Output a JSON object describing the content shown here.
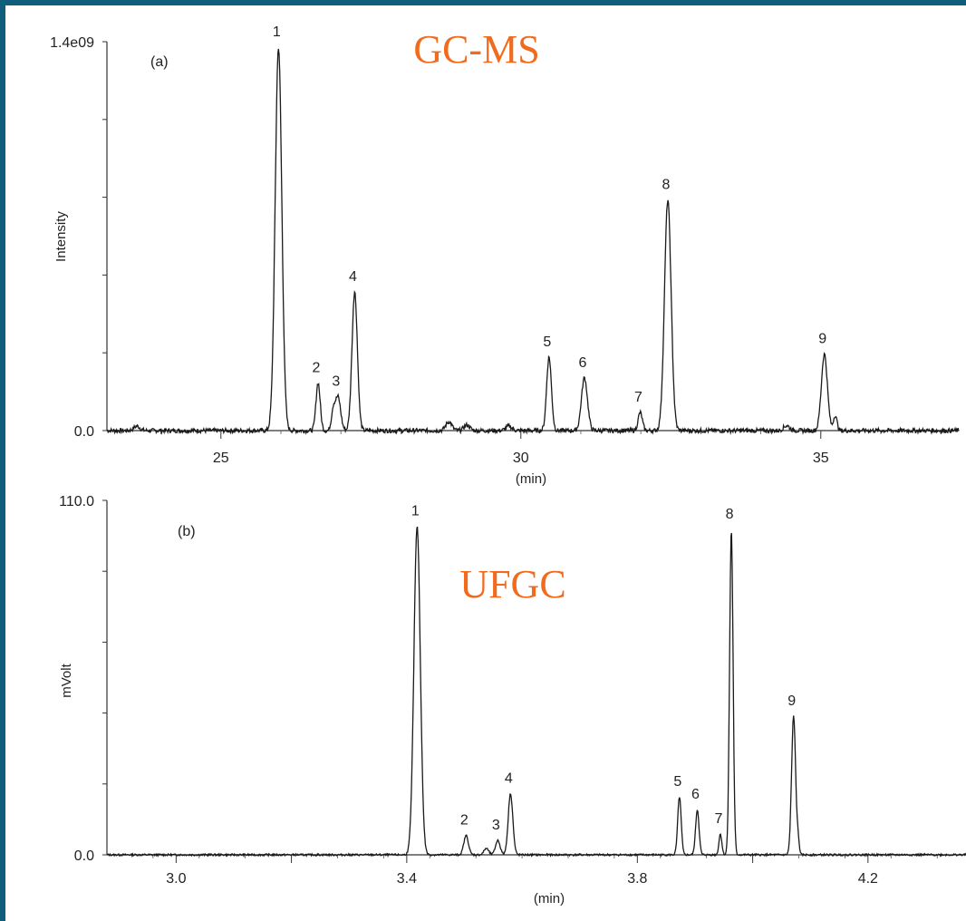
{
  "colors": {
    "frame": "#0f5f7c",
    "trace": "#1a1a1a",
    "title": "#f26a1b"
  },
  "chart_data": [
    {
      "type": "line",
      "panel": "(a)",
      "title": "GC-MS",
      "xlabel": "(min)",
      "ylabel": "Intensity",
      "xlim": [
        23.1,
        37.3
      ],
      "ylim": [
        0,
        1400000000.0
      ],
      "x_ticks": [
        25,
        30,
        35
      ],
      "x_tick_labels": [
        "25",
        "30",
        "35"
      ],
      "y_tick_labels": [
        "0.0",
        "1.4e09"
      ],
      "y_tick_count": 6,
      "baseline_noise": 8000000,
      "series": [
        {
          "peaks": [
            {
              "label": "1",
              "x": 25.96,
              "y": 1380000000.0,
              "w": 0.055
            },
            {
              "label": "2",
              "x": 26.62,
              "y": 172000000.0,
              "w": 0.035
            },
            {
              "label": "3",
              "x": 26.95,
              "y": 122000000.0,
              "w": 0.045
            },
            {
              "label": "",
              "x": 26.87,
              "y": 65000000.0,
              "w": 0.03
            },
            {
              "label": "4",
              "x": 27.23,
              "y": 500000000.0,
              "w": 0.045
            },
            {
              "label": "5",
              "x": 30.47,
              "y": 265000000.0,
              "w": 0.04
            },
            {
              "label": "6",
              "x": 31.06,
              "y": 190000000.0,
              "w": 0.05
            },
            {
              "label": "7",
              "x": 31.99,
              "y": 65000000.0,
              "w": 0.035
            },
            {
              "label": "8",
              "x": 32.45,
              "y": 830000000.0,
              "w": 0.055
            },
            {
              "label": "9",
              "x": 35.06,
              "y": 275000000.0,
              "w": 0.05
            },
            {
              "label": "",
              "x": 35.24,
              "y": 55000000.0,
              "w": 0.03
            },
            {
              "label": "",
              "x": 23.6,
              "y": 16000000.0,
              "w": 0.05
            },
            {
              "label": "",
              "x": 28.8,
              "y": 32000000.0,
              "w": 0.05
            },
            {
              "label": "",
              "x": 29.1,
              "y": 20000000.0,
              "w": 0.05
            },
            {
              "label": "",
              "x": 29.8,
              "y": 16000000.0,
              "w": 0.05
            },
            {
              "label": "",
              "x": 34.43,
              "y": 18000000.0,
              "w": 0.05
            }
          ]
        }
      ]
    },
    {
      "type": "line",
      "panel": "(b)",
      "title": "UFGC",
      "xlabel": "(min)",
      "ylabel": "mVolt",
      "xlim": [
        2.88,
        4.37
      ],
      "ylim": [
        0,
        110
      ],
      "x_ticks": [
        3.0,
        3.4,
        3.8,
        4.2
      ],
      "x_tick_labels": [
        "3.0",
        "3.4",
        "3.8",
        "4.2"
      ],
      "minor_x_ticks": [
        3.2,
        4.0
      ],
      "y_tick_labels": [
        "0.0",
        "110.0"
      ],
      "y_tick_count": 6,
      "baseline_noise": 0.3,
      "series": [
        {
          "peaks": [
            {
              "label": "1",
              "x": 3.418,
              "y": 102,
              "w": 0.0055
            },
            {
              "label": "2",
              "x": 3.503,
              "y": 6.0,
              "w": 0.004
            },
            {
              "label": "3",
              "x": 3.558,
              "y": 4.5,
              "w": 0.004
            },
            {
              "label": "",
              "x": 3.538,
              "y": 2.0,
              "w": 0.004
            },
            {
              "label": "4",
              "x": 3.58,
              "y": 19.0,
              "w": 0.004
            },
            {
              "label": "5",
              "x": 3.873,
              "y": 18.0,
              "w": 0.003
            },
            {
              "label": "6",
              "x": 3.904,
              "y": 14.0,
              "w": 0.003
            },
            {
              "label": "7",
              "x": 3.944,
              "y": 6.5,
              "w": 0.0025
            },
            {
              "label": "8",
              "x": 3.963,
              "y": 101,
              "w": 0.003
            },
            {
              "label": "9",
              "x": 4.071,
              "y": 43,
              "w": 0.0035
            },
            {
              "label": "",
              "x": 4.079,
              "y": 4.0,
              "w": 0.002
            }
          ]
        }
      ]
    }
  ]
}
